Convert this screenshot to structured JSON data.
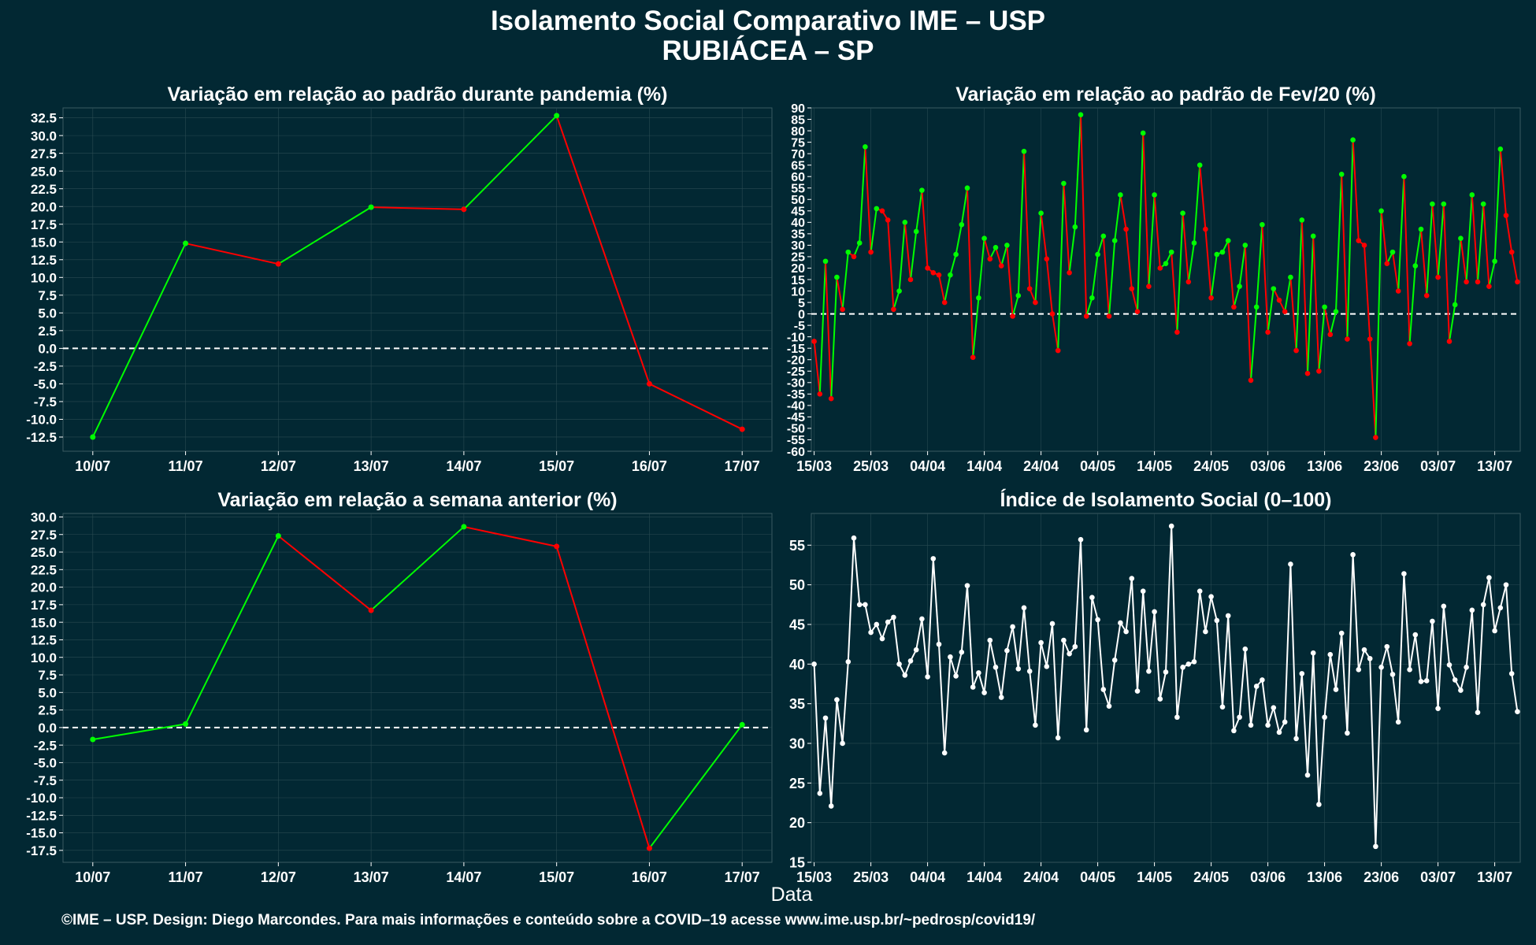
{
  "header": {
    "title_line1": "Isolamento Social Comparativo IME – USP",
    "title_line2": "RUBIÁCEA – SP"
  },
  "xaxis_label": "Data",
  "footer": "©IME – USP. Design: Diego Marcondes. Para mais informações e conteúdo sobre a COVID–19 acesse www.ime.usp.br/~pedrosp/covid19/",
  "colors": {
    "background": "#022833",
    "panel": "#022833",
    "up": "#00ff00",
    "down": "#ff0000",
    "index_line": "#ffffff",
    "grid": "#294a52"
  },
  "chart_data": [
    {
      "type": "line",
      "title": "Variação em relação ao padrão durante pandemia (%)",
      "categories": [
        "10/07",
        "11/07",
        "12/07",
        "13/07",
        "14/07",
        "15/07",
        "16/07",
        "17/07"
      ],
      "values": [
        -12.5,
        14.8,
        11.9,
        19.9,
        19.6,
        32.8,
        -5.0,
        -11.4
      ],
      "yticks": [
        "32.5",
        "30.0",
        "27.5",
        "25.0",
        "22.5",
        "20.0",
        "17.5",
        "15.0",
        "12.5",
        "10.0",
        "7.5",
        "5.0",
        "2.5",
        "0.0",
        "-2.5",
        "-5.0",
        "-7.5",
        "-10.0",
        "-12.5"
      ],
      "ylim": [
        -14.5,
        33.9
      ],
      "reference_line": 0,
      "color_rule": "green when value rises, red when it falls"
    },
    {
      "type": "line",
      "title": "Variação em relação ao padrão de Fev/20 (%)",
      "start_date": "15/03",
      "xticks": [
        "15/03",
        "25/03",
        "04/04",
        "14/04",
        "24/04",
        "04/05",
        "14/05",
        "24/05",
        "03/06",
        "13/06",
        "23/06",
        "03/07",
        "13/07"
      ],
      "values": [
        -12,
        -35,
        23,
        -37,
        16,
        2,
        27,
        25,
        31,
        73,
        27,
        46,
        45,
        41,
        2,
        10,
        40,
        15,
        36,
        54,
        20,
        18,
        17,
        5,
        17,
        26,
        39,
        55,
        -19,
        7,
        33,
        24,
        29,
        21,
        30,
        -1,
        8,
        71,
        11,
        5,
        44,
        24,
        0,
        -16,
        57,
        18,
        38,
        87,
        -1,
        7,
        26,
        34,
        -1,
        32,
        52,
        37,
        11,
        1,
        79,
        12,
        52,
        20,
        22,
        27,
        -8,
        44,
        14,
        31,
        65,
        37,
        7,
        26,
        27,
        32,
        3,
        12,
        30,
        -29,
        3,
        39,
        -8,
        11,
        6,
        1,
        16,
        -16,
        41,
        -26,
        34,
        -25,
        3,
        -9,
        1,
        61,
        -11,
        76,
        32,
        30,
        -11,
        -54,
        45,
        22,
        27,
        10,
        60,
        -13,
        21,
        37,
        8,
        48,
        16,
        48,
        -12,
        4,
        33,
        14,
        52,
        14,
        48,
        12,
        23,
        72,
        43,
        27,
        14
      ],
      "yticks": [
        "90",
        "85",
        "80",
        "75",
        "70",
        "65",
        "60",
        "55",
        "50",
        "45",
        "40",
        "35",
        "30",
        "25",
        "20",
        "15",
        "10",
        "5",
        "0",
        "-5",
        "-10",
        "-15",
        "-20",
        "-25",
        "-30",
        "-35",
        "-40",
        "-45",
        "-50",
        "-55",
        "-60"
      ],
      "ylim": [
        -60,
        90
      ],
      "reference_line": 0,
      "color_rule": "green when value rises, red when it falls"
    },
    {
      "type": "line",
      "title": "Variação em relação a semana anterior (%)",
      "categories": [
        "10/07",
        "11/07",
        "12/07",
        "13/07",
        "14/07",
        "15/07",
        "16/07",
        "17/07"
      ],
      "values": [
        -1.7,
        0.5,
        27.3,
        16.7,
        28.6,
        25.8,
        -17.2,
        0.4
      ],
      "yticks": [
        "30.0",
        "27.5",
        "25.0",
        "22.5",
        "20.0",
        "17.5",
        "15.0",
        "12.5",
        "10.0",
        "7.5",
        "5.0",
        "2.5",
        "0.0",
        "-2.5",
        "-5.0",
        "-7.5",
        "-10.0",
        "-12.5",
        "-15.0",
        "-17.5"
      ],
      "ylim": [
        -19.2,
        30.5
      ],
      "reference_line": 0,
      "color_rule": "green when value rises, red when it falls"
    },
    {
      "type": "line",
      "title": "Índice de Isolamento Social (0–100)",
      "start_date": "15/03",
      "xticks": [
        "15/03",
        "25/03",
        "04/04",
        "14/04",
        "24/04",
        "04/05",
        "14/05",
        "24/05",
        "03/06",
        "13/06",
        "23/06",
        "03/07",
        "13/07"
      ],
      "values": [
        40,
        23.7,
        33.2,
        22.1,
        35.5,
        30,
        40.3,
        55.9,
        47.5,
        47.5,
        44,
        45,
        43.2,
        45.3,
        45.9,
        40,
        38.6,
        40.4,
        41.8,
        45.7,
        38.4,
        53.3,
        42.5,
        28.8,
        40.9,
        38.5,
        41.5,
        49.9,
        37.1,
        38.9,
        36.4,
        43,
        39.6,
        35.8,
        41.7,
        44.7,
        39.4,
        47.1,
        39.1,
        32.3,
        42.7,
        39.7,
        45.1,
        30.7,
        43,
        41.3,
        42.2,
        55.7,
        31.7,
        48.4,
        45.6,
        36.8,
        34.7,
        40.5,
        45.2,
        44.1,
        50.8,
        36.6,
        49.2,
        39.1,
        46.6,
        35.6,
        39,
        57.4,
        33.3,
        39.6,
        40,
        40.3,
        49.2,
        44.1,
        48.5,
        45.5,
        34.6,
        46.1,
        31.6,
        33.3,
        41.9,
        32.3,
        37.2,
        38,
        32.3,
        34.5,
        31.4,
        32.7,
        52.6,
        30.6,
        38.8,
        26,
        41.4,
        22.3,
        33.3,
        41.2,
        36.8,
        43.9,
        31.3,
        53.8,
        39.3,
        41.8,
        40.7,
        17,
        39.6,
        42.2,
        38.7,
        32.7,
        51.4,
        39.3,
        43.7,
        37.8,
        37.9,
        45.4,
        34.4,
        47.3,
        39.9,
        38,
        36.7,
        39.6,
        46.8,
        33.9,
        47.5,
        50.9,
        44.2,
        47.1,
        50,
        38.8,
        34
      ],
      "yticks": [
        "55",
        "50",
        "45",
        "40",
        "35",
        "30",
        "25",
        "20",
        "15"
      ],
      "ylim": [
        15,
        59
      ]
    }
  ]
}
